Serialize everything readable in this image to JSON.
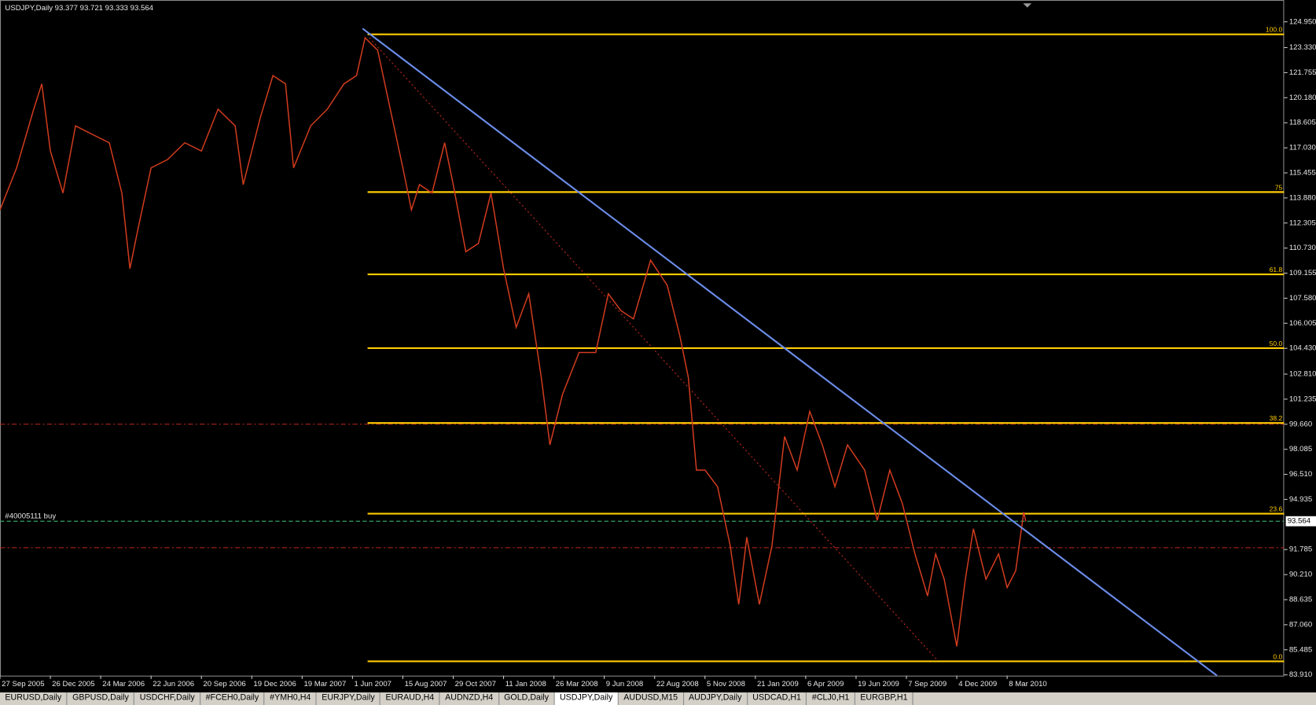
{
  "title": "USDJPY,Daily  93.377 93.721 93.333 93.564",
  "chart_data": {
    "type": "line",
    "xlim": [
      0,
      25.5
    ],
    "ylim": [
      83.86,
      126.32
    ],
    "xticks": [
      {
        "value": 0,
        "label": "27 Sep 2005"
      },
      {
        "value": 1,
        "label": "26 Dec 2005"
      },
      {
        "value": 2,
        "label": "24 Mar 2006"
      },
      {
        "value": 3,
        "label": "22 Jun 2006"
      },
      {
        "value": 4,
        "label": "20 Sep 2006"
      },
      {
        "value": 5,
        "label": "19 Dec 2006"
      },
      {
        "value": 6,
        "label": "19 Mar 2007"
      },
      {
        "value": 7,
        "label": "1 Jun 2007"
      },
      {
        "value": 8,
        "label": "15 Aug 2007"
      },
      {
        "value": 9,
        "label": "29 Oct 2007"
      },
      {
        "value": 10,
        "label": "11 Jan 2008"
      },
      {
        "value": 11,
        "label": "26 Mar 2008"
      },
      {
        "value": 12,
        "label": "9 Jun 2008"
      },
      {
        "value": 13,
        "label": "22 Aug 2008"
      },
      {
        "value": 14,
        "label": "5 Nov 2008"
      },
      {
        "value": 15,
        "label": "21 Jan 2009"
      },
      {
        "value": 16,
        "label": "6 Apr 2009"
      },
      {
        "value": 17,
        "label": "19 Jun 2009"
      },
      {
        "value": 18,
        "label": "7 Sep 2009"
      },
      {
        "value": 19,
        "label": "4 Dec 2009"
      },
      {
        "value": 20,
        "label": "8 Mar 2010"
      }
    ],
    "yticks": [
      {
        "value": 124.95,
        "label": "124.950"
      },
      {
        "value": 123.33,
        "label": "123.330"
      },
      {
        "value": 121.755,
        "label": "121.755"
      },
      {
        "value": 120.18,
        "label": "120.180"
      },
      {
        "value": 118.605,
        "label": "118.605"
      },
      {
        "value": 117.03,
        "label": "117.030"
      },
      {
        "value": 115.455,
        "label": "115.455"
      },
      {
        "value": 113.88,
        "label": "113.880"
      },
      {
        "value": 112.305,
        "label": "112.305"
      },
      {
        "value": 110.73,
        "label": "110.730"
      },
      {
        "value": 109.155,
        "label": "109.155"
      },
      {
        "value": 107.58,
        "label": "107.580"
      },
      {
        "value": 106.005,
        "label": "106.005"
      },
      {
        "value": 104.43,
        "label": "104.430"
      },
      {
        "value": 102.81,
        "label": "102.810"
      },
      {
        "value": 101.235,
        "label": "101.235"
      },
      {
        "value": 99.66,
        "label": "99.660"
      },
      {
        "value": 98.085,
        "label": "98.085"
      },
      {
        "value": 96.51,
        "label": "96.510"
      },
      {
        "value": 94.935,
        "label": "94.935"
      },
      {
        "value": 91.785,
        "label": "91.785"
      },
      {
        "value": 90.21,
        "label": "90.210"
      },
      {
        "value": 88.635,
        "label": "88.635"
      },
      {
        "value": 87.06,
        "label": "87.060"
      },
      {
        "value": 85.485,
        "label": "85.485"
      },
      {
        "value": 83.91,
        "label": "83.910"
      }
    ],
    "last_price": {
      "value": 93.564,
      "label": "93.564"
    },
    "order": {
      "value": 93.564,
      "label": "#40005111 buy"
    },
    "series": [
      {
        "name": "USDJPY",
        "color": "#d23c1e",
        "x": [
          0,
          0.33,
          0.67,
          0.83,
          1,
          1.25,
          1.5,
          1.83,
          2.17,
          2.42,
          2.58,
          2.75,
          3,
          3.33,
          3.67,
          4,
          4.33,
          4.67,
          4.83,
          5.17,
          5.42,
          5.67,
          5.83,
          6.17,
          6.5,
          6.83,
          7.08,
          7.25,
          7.5,
          7.75,
          8,
          8.17,
          8.33,
          8.58,
          8.83,
          9,
          9.25,
          9.5,
          9.75,
          10,
          10.25,
          10.5,
          10.75,
          10.92,
          11.17,
          11.5,
          11.83,
          12.08,
          12.33,
          12.58,
          12.92,
          13.25,
          13.5,
          13.67,
          13.83,
          14,
          14.25,
          14.5,
          14.67,
          14.83,
          15.08,
          15.33,
          15.58,
          15.83,
          16.08,
          16.33,
          16.58,
          16.83,
          17.17,
          17.42,
          17.67,
          17.92,
          18.17,
          18.42,
          18.58,
          18.75,
          19,
          19.17,
          19.33,
          19.58,
          19.83,
          20,
          20.17,
          20.33,
          20.37
        ],
        "values": [
          113.13,
          115.77,
          119.46,
          121.05,
          116.83,
          114.19,
          118.41,
          117.88,
          117.35,
          114.19,
          109.44,
          112.08,
          115.77,
          116.3,
          117.35,
          116.83,
          119.46,
          118.41,
          114.72,
          118.94,
          121.57,
          121.05,
          115.77,
          118.41,
          119.46,
          121.05,
          121.57,
          123.95,
          123.16,
          119.46,
          115.77,
          113.13,
          114.72,
          114.19,
          117.35,
          114.72,
          110.5,
          111.02,
          114.19,
          109.44,
          105.75,
          107.86,
          102.58,
          98.36,
          101.53,
          104.17,
          104.17,
          107.86,
          106.8,
          106.28,
          109.97,
          108.39,
          105.22,
          102.58,
          96.78,
          96.78,
          95.73,
          92.03,
          88.34,
          92.56,
          88.34,
          92.03,
          98.89,
          96.78,
          100.47,
          98.36,
          95.73,
          98.36,
          96.78,
          93.62,
          96.78,
          94.67,
          91.51,
          88.87,
          91.51,
          89.92,
          85.7,
          89.92,
          93.09,
          89.92,
          91.51,
          89.4,
          90.45,
          94.14,
          93.56
        ]
      }
    ],
    "fib_color": "#ffcc00",
    "fib_levels": [
      {
        "label": "100.0",
        "price": 124.16
      },
      {
        "label": "75",
        "price": 114.25
      },
      {
        "label": "61.8",
        "price": 109.08
      },
      {
        "label": "50.0",
        "price": 104.44
      },
      {
        "label": "38.2",
        "price": 99.74
      },
      {
        "label": "23.6",
        "price": 94.04
      },
      {
        "label": "0.0",
        "price": 84.76
      }
    ],
    "hlines": [
      99.66,
      91.9
    ]
  },
  "tabs": [
    "EURUSD,Daily",
    "GBPUSD,Daily",
    "USDCHF,Daily",
    "#FCEH0,Daily",
    "#YMH0,H4",
    "EURJPY,Daily",
    "EURAUD,H4",
    "AUDNZD,H4",
    "GOLD,Daily",
    "USDJPY,Daily",
    "AUDUSD,M15",
    "AUDJPY,Daily",
    "USDCAD,H1",
    "#CLJ0,H1",
    "EURGBP,H1"
  ],
  "active_tab": 9
}
